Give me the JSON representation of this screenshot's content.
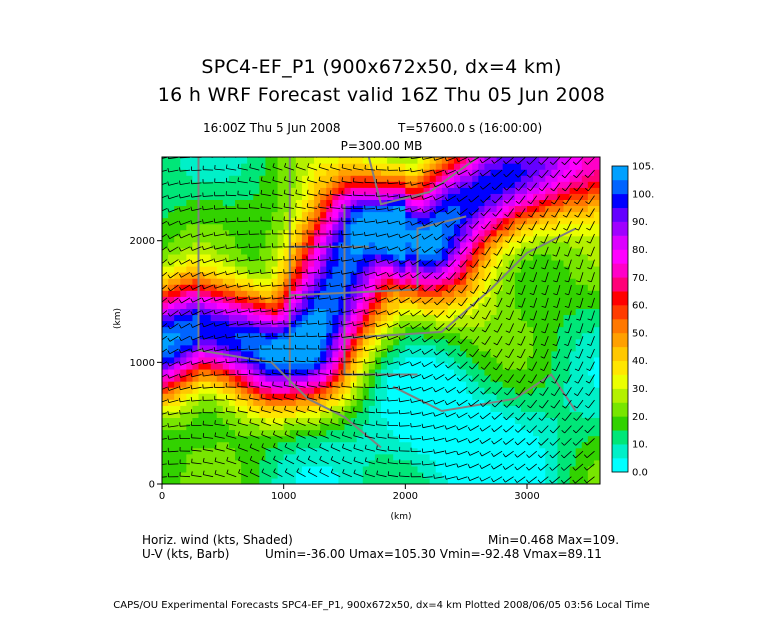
{
  "titles": {
    "line1": "SPC4-EF_P1 (900x672x50, dx=4 km)",
    "line2": "16 h WRF Forecast valid 16Z Thu 05 Jun 2008",
    "time": "16:00Z Thu   5 Jun 2008",
    "tstep": "T=57600.0 s (16:00:00)",
    "level": "P=300.00 MB"
  },
  "chart_data": {
    "type": "heatmap",
    "title": "SPC4-EF_P1 (900x672x50, dx=4 km)",
    "subtitle": "16 h WRF Forecast valid 16Z Thu 05 Jun 2008",
    "field": "Horiz. wind (kts, Shaded)",
    "overlay": "U-V (kts, Barb)",
    "xlabel": "(km)",
    "ylabel": "(km)",
    "xlim": [
      0,
      3600
    ],
    "ylim": [
      0,
      2688
    ],
    "x_ticks": [
      0,
      1000,
      2000,
      3000
    ],
    "y_ticks": [
      0,
      1000,
      2000
    ],
    "colorbar": {
      "levels": [
        0.0,
        5,
        10,
        15,
        20,
        25,
        30,
        35,
        40,
        45,
        50,
        55,
        60,
        65,
        70,
        75,
        80,
        85,
        90,
        95,
        100,
        105
      ],
      "labels": [
        "0.0",
        "10.",
        "20.",
        "30.",
        "40.",
        "50.",
        "60.",
        "70.",
        "80.",
        "90.",
        "100.",
        "105."
      ],
      "colors": [
        "#00ffff",
        "#00f0c8",
        "#00e678",
        "#32d200",
        "#78e600",
        "#b4f000",
        "#ebff00",
        "#ffe600",
        "#ffc800",
        "#ffa000",
        "#ff7800",
        "#ff3c00",
        "#ff0000",
        "#ff0078",
        "#ff00c8",
        "#ff00ff",
        "#dc00ff",
        "#a000ff",
        "#6400ff",
        "#0000ff",
        "#0064ff",
        "#00a0ff"
      ]
    },
    "stats": {
      "min_label": "Min=0.468",
      "max_label": "Max=109.",
      "uv_label": "Umin=-36.00 Umax=105.30 Vmin=-92.48 Vmax=89.11"
    },
    "jet_axis_km": [
      [
        0,
        1150
      ],
      [
        300,
        1280
      ],
      [
        600,
        1200
      ],
      [
        900,
        1080
      ],
      [
        1150,
        1130
      ],
      [
        1350,
        1500
      ],
      [
        1500,
        1900
      ],
      [
        1650,
        2120
      ],
      [
        1950,
        2100
      ],
      [
        2200,
        2000
      ],
      [
        2450,
        2280
      ],
      [
        2800,
        2480
      ],
      [
        3200,
        2620
      ],
      [
        3600,
        2680
      ]
    ]
  },
  "footer": {
    "credit": "CAPS/OU Experimental Forecasts  SPC4-EF_P1, 900x672x50, dx=4 km  Plotted 2008/06/05 03:56 Local Time"
  }
}
